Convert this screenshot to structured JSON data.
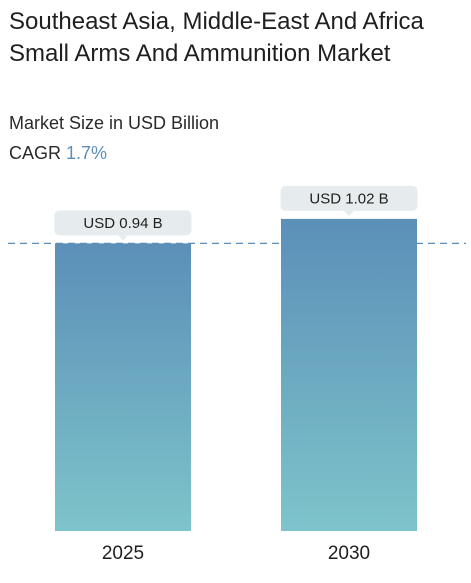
{
  "header": {
    "title": "Southeast Asia, Middle-East And Africa Small Arms And Ammunition Market",
    "subtitle": "Market Size in USD Billion",
    "cagr_label": "CAGR",
    "cagr_value": "1.7%"
  },
  "colors": {
    "bar_top": "#5b8fb8",
    "bar_bottom": "#7ec4ca",
    "label_bg": "#e6eced",
    "reference_line": "#5b8fb8",
    "cagr_accent": "#5b8fb8"
  },
  "chart_data": {
    "type": "bar",
    "title": "Southeast Asia, Middle-East And Africa Small Arms And Ammunition Market",
    "subtitle": "Market Size in USD Billion",
    "categories": [
      "2025",
      "2030"
    ],
    "values": [
      0.94,
      1.02
    ],
    "data_labels": [
      "USD 0.94 B",
      "USD 1.02 B"
    ],
    "unit": "USD Billion",
    "reference_line_value": 0.94,
    "grid": false,
    "legend": "none"
  }
}
